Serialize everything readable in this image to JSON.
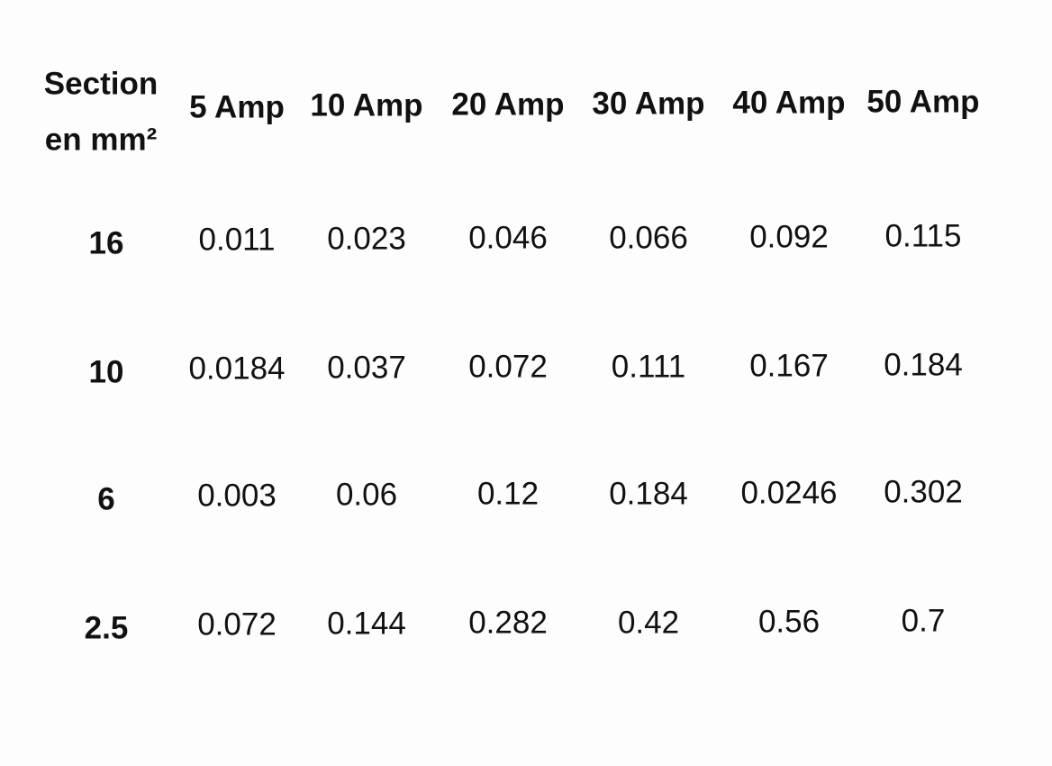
{
  "table": {
    "header_lines": [
      "Section",
      "en mm²"
    ],
    "columns": [
      "5 Amp",
      "10 Amp",
      "20 Amp",
      "30 Amp",
      "40 Amp",
      "50 Amp"
    ],
    "rows": [
      [
        "16",
        "0.011",
        "0.023",
        "0.046",
        "0.066",
        "0.092",
        "0.115"
      ],
      [
        "10",
        "0.0184",
        "0.037",
        "0.072",
        "0.111",
        "0.167",
        "0.184"
      ],
      [
        "6",
        "0.003",
        "0.06",
        "0.12",
        "0.184",
        "0.0246",
        "0.302"
      ],
      [
        "2.5",
        "0.072",
        "0.144",
        "0.282",
        "0.42",
        "0.56",
        "0.7"
      ]
    ]
  }
}
